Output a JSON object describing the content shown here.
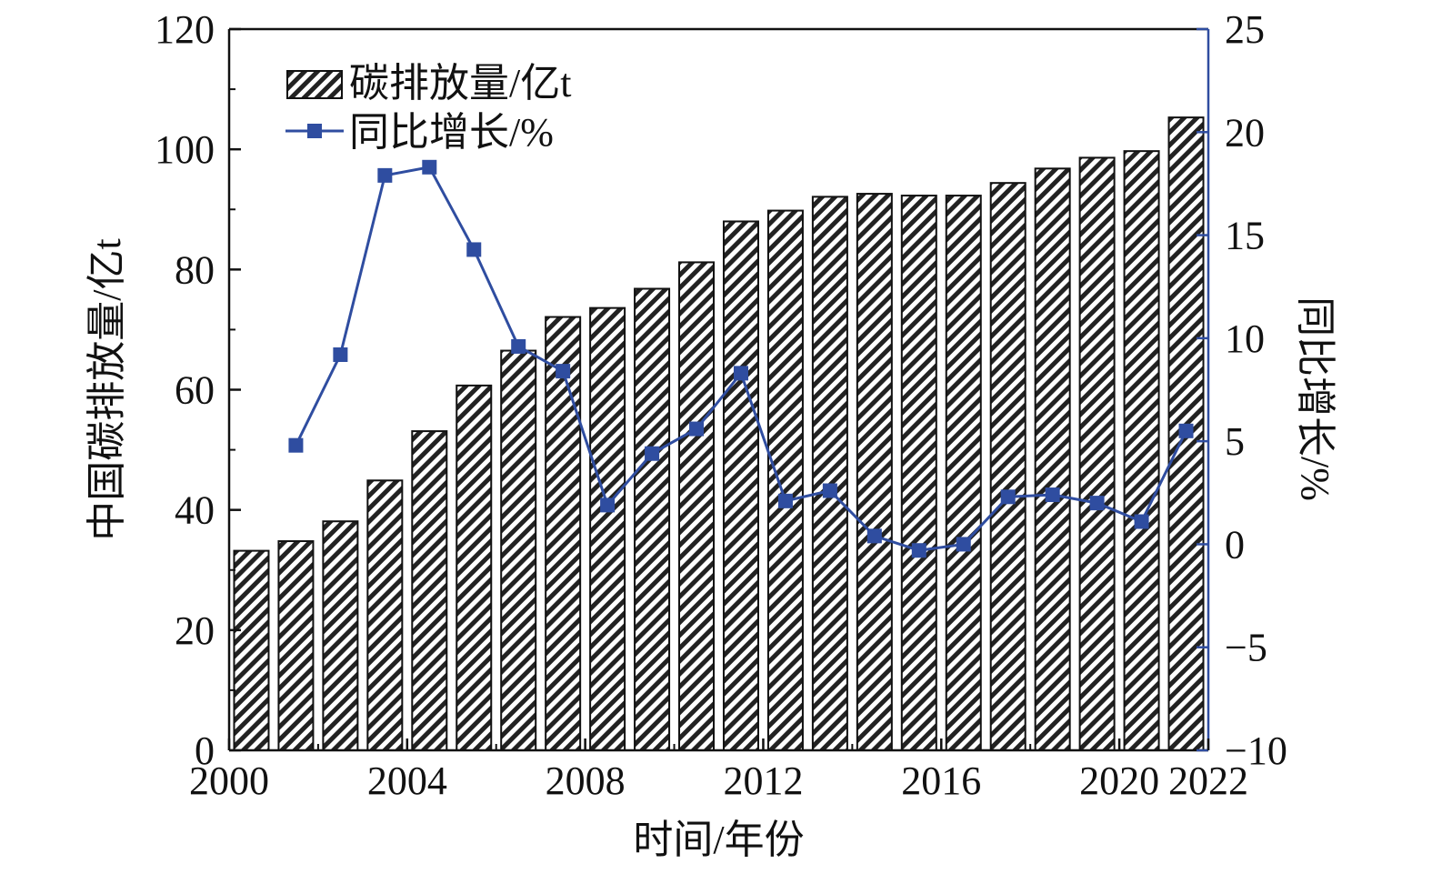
{
  "chart_data": {
    "type": "bar",
    "title": "",
    "xlabel": "时间/年份",
    "ylabel": "中国碳排放量/亿t",
    "y2label": "同比增长/%",
    "xlim": [
      2000,
      2022
    ],
    "xticks": [
      "2000",
      "2004",
      "2008",
      "2012",
      "2016",
      "2020",
      "2022"
    ],
    "ylim": [
      0,
      120
    ],
    "yticks": [
      "0",
      "20",
      "40",
      "60",
      "80",
      "100",
      "120"
    ],
    "y2lim": [
      -10,
      25
    ],
    "y2ticks": [
      "−10",
      "−5",
      "0",
      "5",
      "10",
      "15",
      "20",
      "25"
    ],
    "legend_position": "top-left",
    "grid": false,
    "categories": [
      2000,
      2001,
      2002,
      2003,
      2004,
      2005,
      2006,
      2007,
      2008,
      2009,
      2010,
      2011,
      2012,
      2013,
      2014,
      2015,
      2016,
      2017,
      2018,
      2019,
      2020,
      2021
    ],
    "series": [
      {
        "name": "碳排放量/亿t",
        "type": "bar",
        "axis": "left",
        "color": "#222222",
        "values": [
          33.2,
          34.8,
          38.1,
          44.9,
          53.1,
          60.7,
          66.5,
          72.1,
          73.6,
          76.8,
          81.2,
          88.0,
          89.8,
          92.1,
          92.6,
          92.3,
          92.3,
          94.4,
          96.8,
          98.6,
          99.7,
          105.3
        ]
      },
      {
        "name": "同比增长/%",
        "type": "line",
        "axis": "right",
        "color": "#2f4da0",
        "x": [
          2001,
          2002,
          2003,
          2004,
          2005,
          2006,
          2007,
          2008,
          2009,
          2010,
          2011,
          2012,
          2013,
          2014,
          2015,
          2016,
          2017,
          2018,
          2019,
          2020,
          2021
        ],
        "values": [
          4.8,
          9.2,
          17.9,
          18.3,
          14.3,
          9.6,
          8.4,
          1.9,
          4.4,
          5.6,
          8.3,
          2.1,
          2.6,
          0.4,
          -0.3,
          0.0,
          2.3,
          2.4,
          2.0,
          1.1,
          5.5
        ]
      }
    ]
  }
}
